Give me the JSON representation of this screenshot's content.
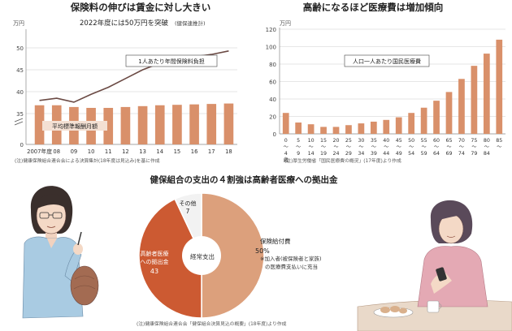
{
  "colors": {
    "bar": "#d9906a",
    "line": "#6b4a44",
    "axis": "#888888",
    "grid": "#cccccc",
    "pie_main": "#dca07c",
    "pie_elderly": "#cc5a32",
    "pie_other": "#f2f2f2",
    "text": "#333333"
  },
  "chart_data": [
    {
      "type": "bar+line",
      "title": "保険料の伸びは賃金に対し大きい",
      "ylabel": "万円",
      "ylim": [
        0,
        50
      ],
      "yticks": [
        "0",
        "35",
        "40",
        "45",
        "50"
      ],
      "axis_break": true,
      "categories": [
        "2007年度",
        "08",
        "09",
        "10",
        "11",
        "12",
        "13",
        "14",
        "15",
        "16",
        "17",
        "18"
      ],
      "series": [
        {
          "name": "平均標準報酬月額",
          "type": "bar",
          "values": [
            36.9,
            36.9,
            36.5,
            36.3,
            36.3,
            36.5,
            36.7,
            36.9,
            37.0,
            37.1,
            37.2,
            37.3
          ]
        },
        {
          "name": "1人あたり年間保険料負担",
          "type": "line",
          "values": [
            38.0,
            38.5,
            37.6,
            39.4,
            41.0,
            43.0,
            45.0,
            46.5,
            47.5,
            48.0,
            48.5,
            49.3
          ]
        }
      ],
      "annotation": "2022年度には50万円を突破",
      "annotation_note": "(健保連推計)",
      "note": "(注)健康保険組合連合会による決算集計(18年度は見込み)を基に作成"
    },
    {
      "type": "bar",
      "title": "高齢になるほど医療費は増加傾向",
      "ylabel": "万円",
      "ylim": [
        0,
        120
      ],
      "yticks": [
        "0",
        "20",
        "40",
        "60",
        "80",
        "100",
        "120"
      ],
      "categories": [
        "0〜4歳",
        "5〜9",
        "10〜14",
        "15〜19",
        "20〜24",
        "25〜29",
        "30〜34",
        "35〜39",
        "40〜44",
        "45〜49",
        "50〜54",
        "55〜59",
        "60〜64",
        "65〜69",
        "70〜74",
        "75〜79",
        "80〜84",
        "85〜"
      ],
      "tick_top": [
        "0",
        "5",
        "10",
        "15",
        "20",
        "25",
        "30",
        "35",
        "40",
        "45",
        "50",
        "55",
        "60",
        "65",
        "70",
        "75",
        "80",
        "85"
      ],
      "tick_bottom": [
        "4",
        "9",
        "14",
        "19",
        "24",
        "29",
        "34",
        "39",
        "44",
        "49",
        "54",
        "59",
        "64",
        "69",
        "74",
        "79",
        "84",
        ""
      ],
      "tick_unit": "歳",
      "series": [
        {
          "name": "人口一人あたり国民医療費",
          "values": [
            24,
            13,
            11,
            8,
            8,
            10,
            12,
            14,
            16,
            19,
            24,
            30,
            38,
            48,
            63,
            78,
            92,
            108
          ]
        }
      ],
      "note": "(注)厚生労働省「国民医療費の概況」(17年度)より作成"
    },
    {
      "type": "pie",
      "title": "健保組合の支出の４割強は高齢者医療への拠出金",
      "center_label": "経常支出",
      "slices": [
        {
          "label": "保険給付費",
          "value": 50,
          "value_text": "50%"
        },
        {
          "label": "高齢者医療への拠出金",
          "value": 43,
          "value_text": "43"
        },
        {
          "label": "その他",
          "value": 7,
          "value_text": "7"
        }
      ],
      "slice_note": "※加入者(被保険者と家族)の医療費支払いに充当",
      "note": "(注)健康保険組合連合会「健保組合決算見込の概要」(18年度)より作成"
    }
  ],
  "labels": {
    "pie_other_name": "その他",
    "pie_elderly_line1": "高齢者医療",
    "pie_elderly_line2": "への拠出金",
    "pie_note_line1": "※加入者(被保険者と家族)",
    "pie_note_line2": "の医療費支払いに充当"
  }
}
